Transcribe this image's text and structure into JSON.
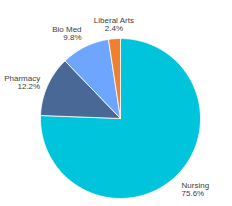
{
  "chart_data": {
    "type": "pie",
    "categories": [
      "Nursing",
      "Pharmacy",
      "Bio Med",
      "Liberal Arts"
    ],
    "values": [
      75.6,
      12.2,
      9.8,
      2.4
    ],
    "value_labels": [
      "75.6%",
      "12.2%",
      "9.8%",
      "2.4%"
    ],
    "colors": [
      "#00c4dc",
      "#4a6896",
      "#6ea6ff",
      "#ef8030"
    ],
    "data_labels": true
  }
}
